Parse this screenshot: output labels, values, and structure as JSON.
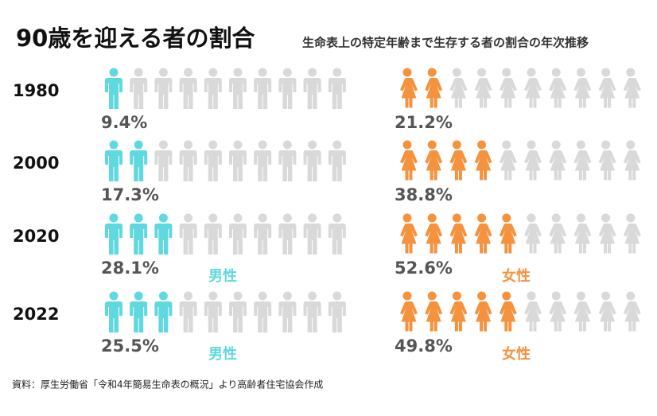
{
  "chart_data": {
    "type": "pictogram",
    "title": "90歳を迎える者の割合",
    "subtitle": "生命表上の特定年齢まで生存する者の割合の年次推移",
    "categories": [
      "1980",
      "2000",
      "2020",
      "2022"
    ],
    "ylim": [
      0,
      100
    ],
    "series": [
      {
        "name": "男性",
        "color": "#5fd8e0",
        "values": [
          9.4,
          17.3,
          28.1,
          25.5
        ],
        "value_labels": [
          "9.4%",
          "17.3%",
          "28.1%",
          "25.5%"
        ]
      },
      {
        "name": "女性",
        "color": "#f5923e",
        "values": [
          21.2,
          38.8,
          52.6,
          49.8
        ],
        "value_labels": [
          "21.2%",
          "38.8%",
          "52.6%",
          "49.8%"
        ]
      }
    ],
    "source": "資料：厚生労働省「令和4年簡易生命表の概況」より高齢者住宅協会作成"
  }
}
